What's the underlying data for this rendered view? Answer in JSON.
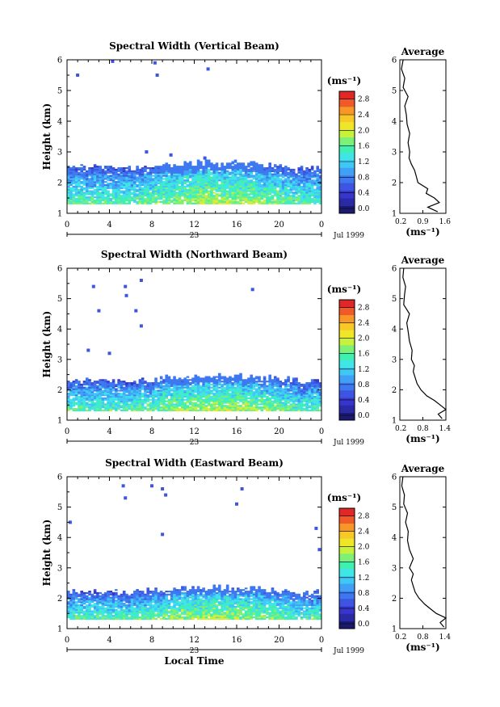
{
  "figure": {
    "common_xlabel": "Local Time",
    "date_label": "Jul 1999",
    "day_label": "23",
    "colorbar_unit": "(ms⁻¹)",
    "colorbar_ticks": [
      "0.0",
      "0.4",
      "0.8",
      "1.2",
      "1.6",
      "2.0",
      "2.4",
      "2.8"
    ],
    "colorbar_colors": [
      "#1a1a6e",
      "#2a2aa6",
      "#3636cc",
      "#3d55e0",
      "#3e78f0",
      "#3fa0f5",
      "#3fc8f5",
      "#40e6e6",
      "#3ff0b0",
      "#7df075",
      "#c8f03c",
      "#f0e628",
      "#f8c828",
      "#f89628",
      "#f05a28",
      "#e02828"
    ],
    "avg_title": "Average",
    "avg_unit": "(ms⁻¹)"
  },
  "chart_data": [
    {
      "type": "heatmap",
      "title": "Spectral Width (Vertical Beam)",
      "ylabel": "Height (km)",
      "xlim": [
        0,
        24
      ],
      "ylim": [
        1,
        6
      ],
      "xticks": [
        "0",
        "4",
        "8",
        "12",
        "16",
        "20",
        "0"
      ],
      "yticks": [
        "1",
        "2",
        "3",
        "4",
        "5",
        "6"
      ],
      "colorbar_range": [
        0.0,
        3.0
      ],
      "layer_top_km": 2.5,
      "sparse_points": [
        [
          1.0,
          5.5
        ],
        [
          8.3,
          5.9
        ],
        [
          8.5,
          5.5
        ],
        [
          4.3,
          5.95
        ],
        [
          13.3,
          5.7
        ],
        [
          7.5,
          3.0
        ],
        [
          9.8,
          2.9
        ],
        [
          13.0,
          2.8
        ],
        [
          7.0,
          2.4
        ]
      ],
      "average_profile": {
        "xlim": [
          0.2,
          1.6
        ],
        "xticks": [
          "0.2",
          "0.9",
          "1.6"
        ],
        "heights": [
          1.05,
          1.2,
          1.35,
          1.5,
          1.65,
          1.8,
          2.0,
          2.2,
          2.4,
          2.6,
          2.8,
          3.0,
          3.3,
          3.6,
          3.9,
          4.2,
          4.5,
          4.8,
          5.1,
          5.4,
          5.7,
          6.0
        ],
        "values": [
          1.35,
          1.05,
          1.4,
          1.25,
          1.0,
          1.05,
          0.75,
          0.7,
          0.65,
          0.55,
          0.48,
          0.5,
          0.45,
          0.5,
          0.42,
          0.4,
          0.35,
          0.45,
          0.3,
          0.35,
          0.25,
          0.3
        ]
      }
    },
    {
      "type": "heatmap",
      "title": "Spectral Width (Northward Beam)",
      "ylabel": "Height (km)",
      "xlim": [
        0,
        24
      ],
      "ylim": [
        1,
        6
      ],
      "xticks": [
        "0",
        "4",
        "8",
        "12",
        "16",
        "20",
        "0"
      ],
      "yticks": [
        "1",
        "2",
        "3",
        "4",
        "5",
        "6"
      ],
      "colorbar_range": [
        0.0,
        3.0
      ],
      "layer_top_km": 2.3,
      "sparse_points": [
        [
          2.5,
          5.4
        ],
        [
          5.5,
          5.4
        ],
        [
          7.0,
          5.6
        ],
        [
          17.5,
          5.3
        ],
        [
          5.6,
          5.1
        ],
        [
          3.0,
          4.6
        ],
        [
          6.5,
          4.6
        ],
        [
          7.0,
          4.1
        ],
        [
          2.0,
          3.3
        ],
        [
          4.0,
          3.2
        ]
      ],
      "average_profile": {
        "xlim": [
          0.2,
          1.4
        ],
        "xticks": [
          "0.2",
          "0.8",
          "1.4"
        ],
        "heights": [
          1.05,
          1.2,
          1.35,
          1.5,
          1.65,
          1.8,
          2.0,
          2.2,
          2.4,
          2.6,
          2.8,
          3.0,
          3.3,
          3.6,
          3.9,
          4.2,
          4.5,
          4.8,
          5.1,
          5.4,
          5.7,
          6.0
        ],
        "values": [
          1.3,
          1.2,
          1.4,
          1.25,
          1.1,
          0.9,
          0.75,
          0.65,
          0.6,
          0.55,
          0.58,
          0.5,
          0.52,
          0.45,
          0.42,
          0.38,
          0.45,
          0.3,
          0.32,
          0.35,
          0.28,
          0.3
        ]
      }
    },
    {
      "type": "heatmap",
      "title": "Spectral Width (Eastward Beam)",
      "ylabel": "Height (km)",
      "xlabel": "Local Time",
      "xlim": [
        0,
        24
      ],
      "ylim": [
        1,
        6
      ],
      "xticks": [
        "0",
        "4",
        "8",
        "12",
        "16",
        "20",
        "0"
      ],
      "yticks": [
        "1",
        "2",
        "3",
        "4",
        "5",
        "6"
      ],
      "colorbar_range": [
        0.0,
        3.0
      ],
      "layer_top_km": 2.2,
      "sparse_points": [
        [
          5.3,
          5.7
        ],
        [
          5.5,
          5.3
        ],
        [
          9.0,
          5.6
        ],
        [
          9.3,
          5.4
        ],
        [
          16.5,
          5.6
        ],
        [
          16.0,
          5.1
        ],
        [
          8.0,
          5.7
        ],
        [
          0.3,
          4.5
        ],
        [
          23.5,
          4.3
        ],
        [
          9.0,
          4.1
        ],
        [
          23.8,
          3.6
        ]
      ],
      "average_profile": {
        "xlim": [
          0.2,
          1.4
        ],
        "xticks": [
          "0.2",
          "0.8",
          "1.4"
        ],
        "heights": [
          1.05,
          1.2,
          1.35,
          1.5,
          1.65,
          1.8,
          2.0,
          2.2,
          2.4,
          2.6,
          2.8,
          3.0,
          3.3,
          3.6,
          3.9,
          4.2,
          4.5,
          4.8,
          5.1,
          5.4,
          5.7,
          6.0
        ],
        "values": [
          1.35,
          1.25,
          1.4,
          1.15,
          1.0,
          0.85,
          0.7,
          0.6,
          0.55,
          0.5,
          0.55,
          0.45,
          0.55,
          0.45,
          0.4,
          0.42,
          0.35,
          0.4,
          0.3,
          0.32,
          0.25,
          0.28
        ]
      }
    }
  ]
}
